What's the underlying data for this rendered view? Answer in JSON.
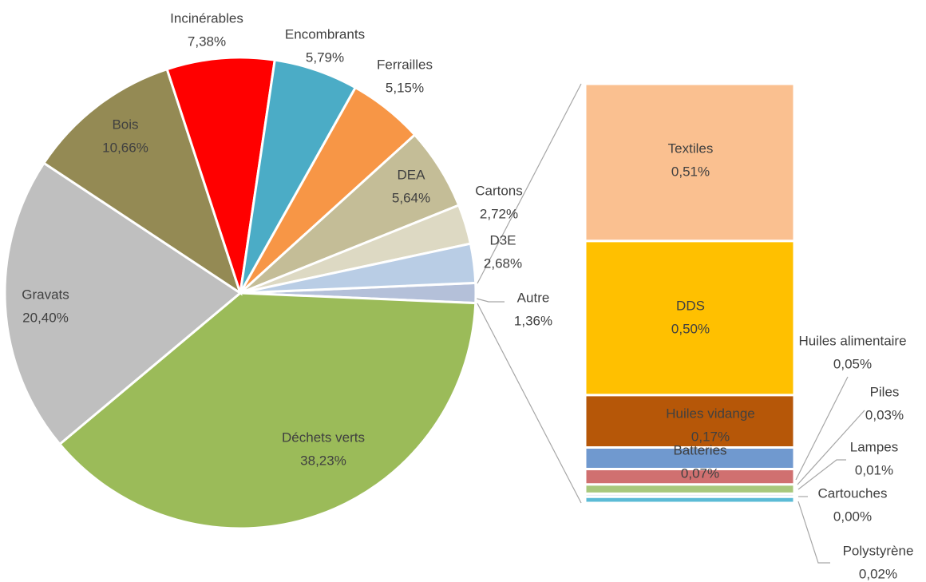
{
  "chart_data": {
    "type": "pie-of-bar",
    "pie": {
      "categories": [
        "Autre",
        "Déchets verts",
        "Gravats",
        "Bois",
        "Incinérables",
        "Encombrants",
        "Ferrailles",
        "DEA",
        "Cartons",
        "D3E"
      ],
      "values": [
        1.36,
        38.23,
        20.4,
        10.66,
        7.38,
        5.79,
        5.15,
        5.64,
        2.72,
        2.68
      ],
      "value_labels": [
        "1,36%",
        "38,23%",
        "20,40%",
        "10,66%",
        "7,38%",
        "5,79%",
        "5,15%",
        "5,64%",
        "2,72%",
        "2,68%"
      ],
      "colors": [
        "#b4c0d9",
        "#9bbb59",
        "#bfbfbf",
        "#948a54",
        "#ff0000",
        "#4bacc6",
        "#f79646",
        "#c4bd97",
        "#ddd9c3",
        "#b9cde5"
      ]
    },
    "bar": {
      "categories": [
        "Textiles",
        "DDS",
        "Huiles vidange",
        "Batteries",
        "Huiles alimentaire",
        "Piles",
        "Lampes",
        "Cartouches",
        "Polystyrène"
      ],
      "values": [
        0.51,
        0.5,
        0.17,
        0.07,
        0.05,
        0.03,
        0.01,
        0.0,
        0.02
      ],
      "value_labels": [
        "0,51%",
        "0,50%",
        "0,17%",
        "0,07%",
        "0,05%",
        "0,03%",
        "0,01%",
        "0,00%",
        "0,02%"
      ],
      "colors": [
        "#fac090",
        "#ffc000",
        "#b65708",
        "#7099cf",
        "#d07070",
        "#a8c87c",
        "#dde3ee",
        "#c6d9f1",
        "#5bbbd6"
      ]
    }
  }
}
